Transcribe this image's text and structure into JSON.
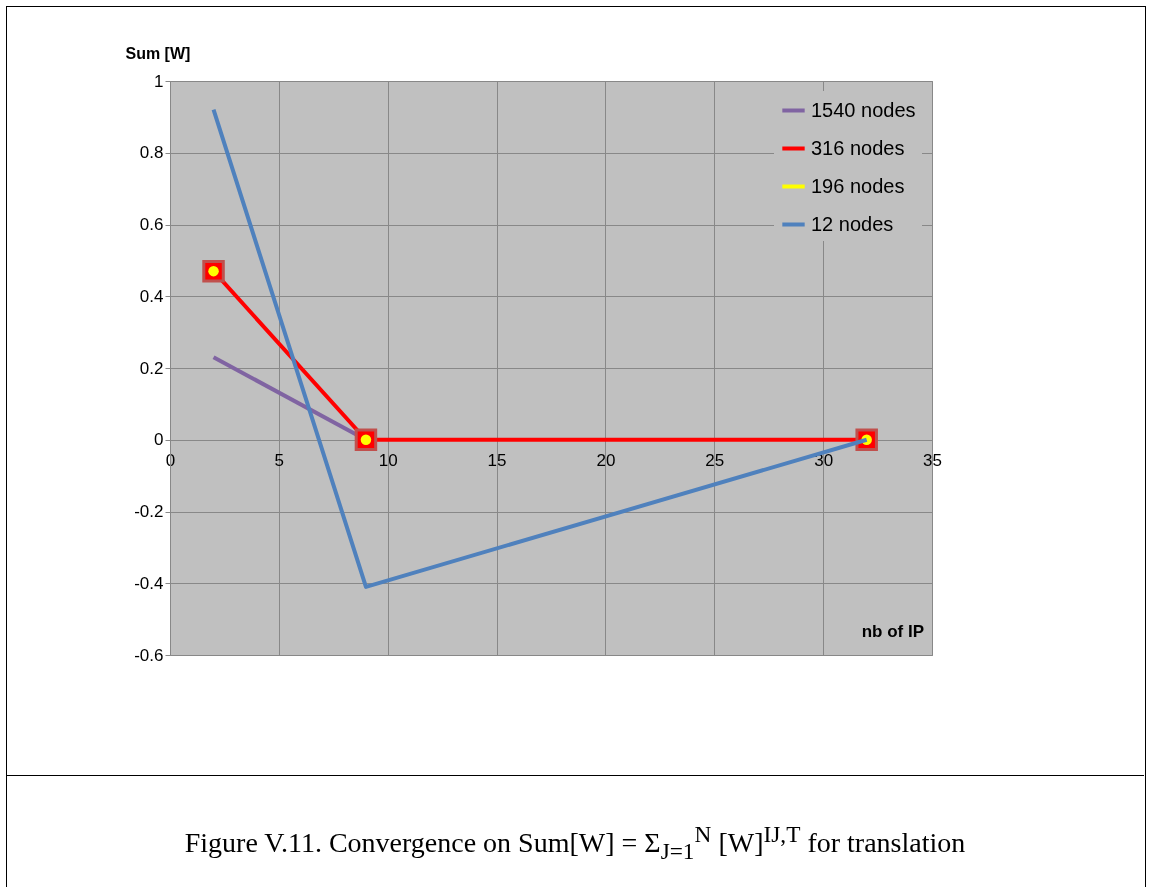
{
  "chart_data": {
    "type": "line",
    "ylabel": "Sum [W]",
    "xlabel": "nb of IP",
    "annotations": [
      "Figure V.11. Convergence on Sum[W] = Σ$_{J=1}$$^{N}$ [W]$^{IJ,T}$ for translation"
    ],
    "xlim": [
      0,
      35
    ],
    "xticks": [
      0,
      5,
      10,
      15,
      20,
      25,
      30,
      35
    ],
    "ylim": [
      -0.6,
      1
    ],
    "yticks": [
      -0.6,
      -0.4,
      -0.2,
      0,
      0.2,
      0.4,
      0.6,
      0.8,
      1
    ],
    "grid": true,
    "legend": "right",
    "line_style": "solid",
    "series": [
      {
        "name": "1540 nodes",
        "color": "#8064a2",
        "x": [
          2,
          9
        ],
        "values": [
          0.23,
          0
        ],
        "marker": "none"
      },
      {
        "name": "316 nodes",
        "color": "#ff0000",
        "x": [
          2,
          9,
          32
        ],
        "values": [
          0.47,
          0,
          0
        ],
        "marker": "square"
      },
      {
        "name": "196 nodes",
        "type": "scatter",
        "color": "#ffff00",
        "x": [
          2,
          9,
          32
        ],
        "values": [
          0.47,
          0,
          0
        ],
        "marker": "circle"
      },
      {
        "name": "12 nodes",
        "color": "#4f81bd",
        "x": [
          2,
          9,
          32
        ],
        "values": [
          0.92,
          -0.41,
          0
        ],
        "marker": "none"
      }
    ]
  }
}
